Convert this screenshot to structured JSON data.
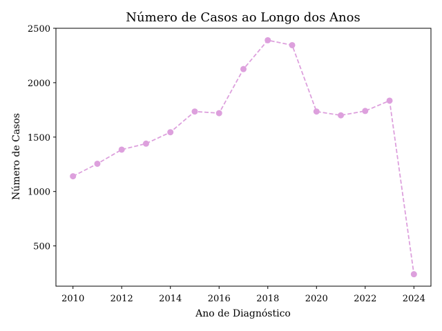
{
  "chart_data": {
    "type": "line",
    "title": "Número de Casos ao Longo dos Anos",
    "xlabel": "Ano de Diagnóstico",
    "ylabel": "Número de Casos",
    "x": [
      2010,
      2011,
      2012,
      2013,
      2014,
      2015,
      2016,
      2017,
      2018,
      2019,
      2020,
      2021,
      2022,
      2023,
      2024
    ],
    "series": [
      {
        "values": [
          1140,
          1255,
          1385,
          1440,
          1545,
          1735,
          1720,
          2125,
          2390,
          2345,
          1735,
          1700,
          1740,
          1835,
          240
        ],
        "color": "#dda0dd",
        "line_style": "dashed",
        "marker": "circle"
      }
    ],
    "xticks": [
      2010,
      2012,
      2014,
      2016,
      2018,
      2020,
      2022,
      2024
    ],
    "yticks": [
      500,
      1000,
      1500,
      2000,
      2500
    ],
    "xlim": [
      2009.3,
      2024.7
    ],
    "ylim": [
      130,
      2500
    ],
    "grid": false
  }
}
